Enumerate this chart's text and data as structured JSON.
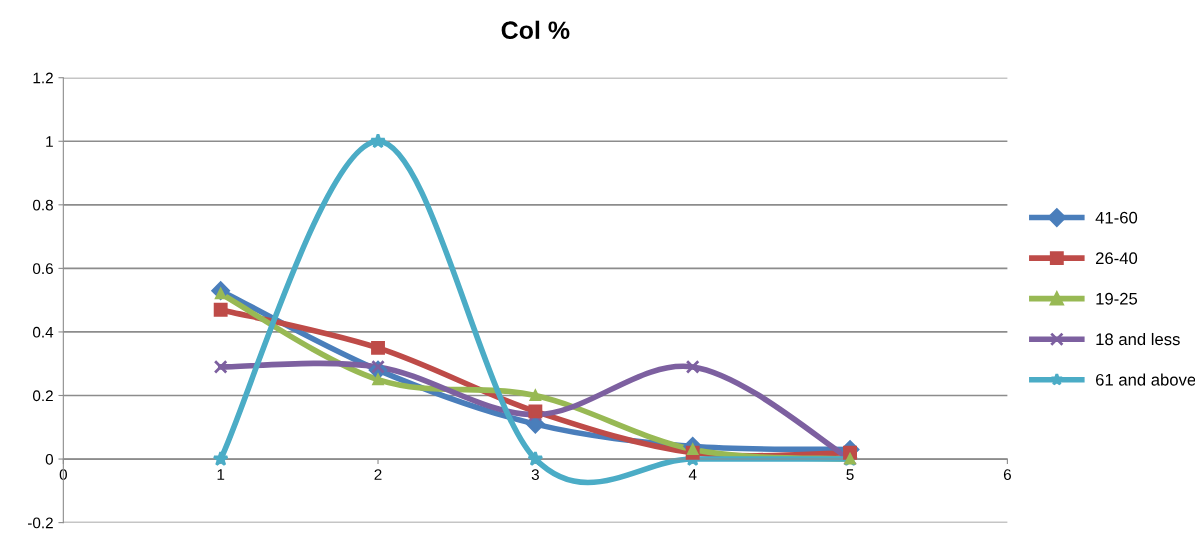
{
  "chart_data": {
    "type": "line",
    "title": "Col %",
    "x": [
      1,
      2,
      3,
      4,
      5
    ],
    "series": [
      {
        "name": "41-60",
        "color": "#4a7ebb",
        "marker": "diamond",
        "values": [
          0.53,
          0.28,
          0.11,
          0.04,
          0.03
        ]
      },
      {
        "name": "26-40",
        "color": "#be4b48",
        "marker": "square",
        "values": [
          0.47,
          0.35,
          0.15,
          0.02,
          0.02
        ]
      },
      {
        "name": "19-25",
        "color": "#98b954",
        "marker": "triangle",
        "values": [
          0.52,
          0.25,
          0.2,
          0.03,
          0.0
        ]
      },
      {
        "name": "18 and less",
        "color": "#7d60a0",
        "marker": "cross",
        "values": [
          0.29,
          0.29,
          0.14,
          0.29,
          0.0
        ]
      },
      {
        "name": "61 and above",
        "color": "#4bacc6",
        "marker": "star",
        "values": [
          0,
          1,
          0,
          0,
          0
        ]
      }
    ],
    "xlim": [
      0,
      6
    ],
    "xticks": [
      0,
      1,
      2,
      3,
      4,
      5,
      6
    ],
    "ylim": [
      -0.2,
      1.2
    ],
    "yticks": [
      -0.2,
      0,
      0.2,
      0.4,
      0.6,
      0.8,
      1,
      1.2
    ],
    "grid": "y",
    "legend": "right",
    "line_style": "solid"
  }
}
